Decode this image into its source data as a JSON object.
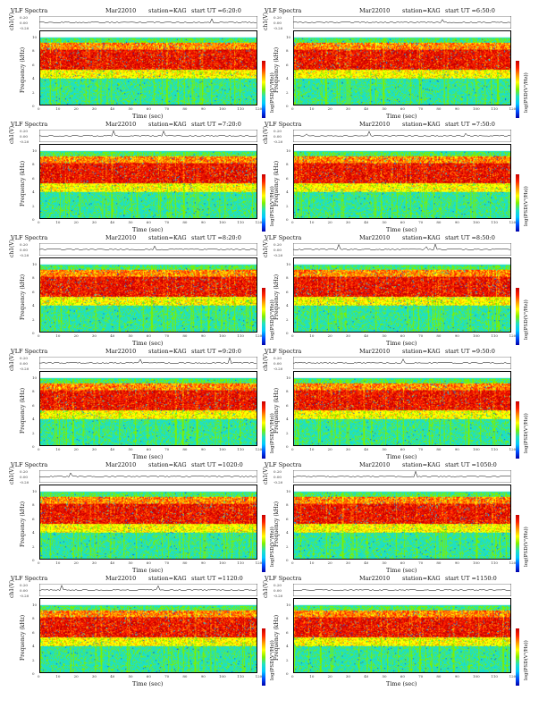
{
  "common": {
    "title": "VLF Spectra",
    "station": "station=KAG",
    "wave_ylabel": "ch1(V)",
    "freq_ylabel": "Frequency (kHz)",
    "xlabel": "Time (sec)",
    "cbar_label": "log(PSD(V²/Hz))",
    "wave_ticks": [
      "0.20",
      "0.00",
      "-0.20"
    ],
    "freq_ticks": [
      "10",
      "8",
      "6",
      "4",
      "2",
      "0"
    ]
  },
  "panels": [
    {
      "date": "Mar22010",
      "start": "start UT =6:20:0",
      "xticks": [
        "0",
        "10",
        "20",
        "30",
        "40",
        "50",
        "60",
        "70",
        "80",
        "90",
        "100",
        "110",
        "120"
      ]
    },
    {
      "date": "Mar22010",
      "start": "start UT =6:50:0",
      "xticks": [
        "0",
        "10",
        "20",
        "30",
        "40",
        "50",
        "60",
        "70",
        "80",
        "90",
        "100",
        "110",
        "120"
      ]
    },
    {
      "date": "Mar22010",
      "start": "start UT =7:20:0",
      "xticks": [
        "0",
        "10",
        "20",
        "30",
        "40",
        "50",
        "60",
        "70",
        "80",
        "90",
        "100",
        "110",
        "120"
      ]
    },
    {
      "date": "Mar22010",
      "start": "start UT =7:50:0",
      "xticks": [
        "0",
        "10",
        "20",
        "30",
        "40",
        "50",
        "60",
        "70",
        "80",
        "90",
        "100",
        "110",
        "120"
      ]
    },
    {
      "date": "Mar22010",
      "start": "start UT =8:20:0",
      "xticks": [
        "0",
        "10",
        "20",
        "30",
        "40",
        "50",
        "60",
        "70",
        "80",
        "90",
        "100",
        "110",
        "120"
      ]
    },
    {
      "date": "Mar22010",
      "start": "start UT =8:50:0",
      "xticks": [
        "0",
        "10",
        "20",
        "30",
        "40",
        "50",
        "60",
        "70",
        "80",
        "90",
        "100",
        "110",
        "120"
      ]
    },
    {
      "date": "Mar22010",
      "start": "start UT =9:20:0",
      "xticks": [
        "0",
        "10",
        "20",
        "30",
        "40",
        "50",
        "60",
        "70",
        "80",
        "90",
        "100",
        "110",
        "120"
      ]
    },
    {
      "date": "Mar22010",
      "start": "start UT =9:50:0",
      "xticks": [
        "0",
        "10",
        "20",
        "30",
        "40",
        "50",
        "60",
        "70",
        "80",
        "90",
        "100",
        "110",
        "120"
      ]
    },
    {
      "date": "Mar22010",
      "start": "start UT =1020:0",
      "xticks": [
        "0",
        "10",
        "20",
        "30",
        "40",
        "50",
        "60",
        "70",
        "80",
        "90",
        "100",
        "110",
        "120"
      ]
    },
    {
      "date": "Mar22010",
      "start": "start UT =1050:0",
      "xticks": [
        "0",
        "10",
        "20",
        "30",
        "40",
        "50",
        "60",
        "70",
        "80",
        "90",
        "100",
        "110",
        "120"
      ]
    },
    {
      "date": "Mar22010",
      "start": "start UT =1120:0",
      "xticks": [
        "0",
        "10",
        "20",
        "30",
        "40",
        "50",
        "60",
        "70",
        "80",
        "90",
        "100",
        "110",
        "120"
      ]
    },
    {
      "date": "Mar22010",
      "start": "start UT =1150:0",
      "xticks": [
        "0",
        "10",
        "20",
        "30",
        "40",
        "50",
        "60",
        "70",
        "80",
        "90",
        "100",
        "110",
        "120"
      ]
    }
  ],
  "chart_data": {
    "type": "heatmap",
    "x_range": [
      0,
      120
    ],
    "y_range_kHz": [
      0,
      10
    ],
    "wave_range_V": [
      -0.2,
      0.2
    ],
    "colormap": [
      "#0000aa",
      "#0050ff",
      "#00c8ff",
      "#20e0c0",
      "#7cf000",
      "#ffff00",
      "#ff9900",
      "#ff2200",
      "#c80000"
    ],
    "grid": false
  }
}
